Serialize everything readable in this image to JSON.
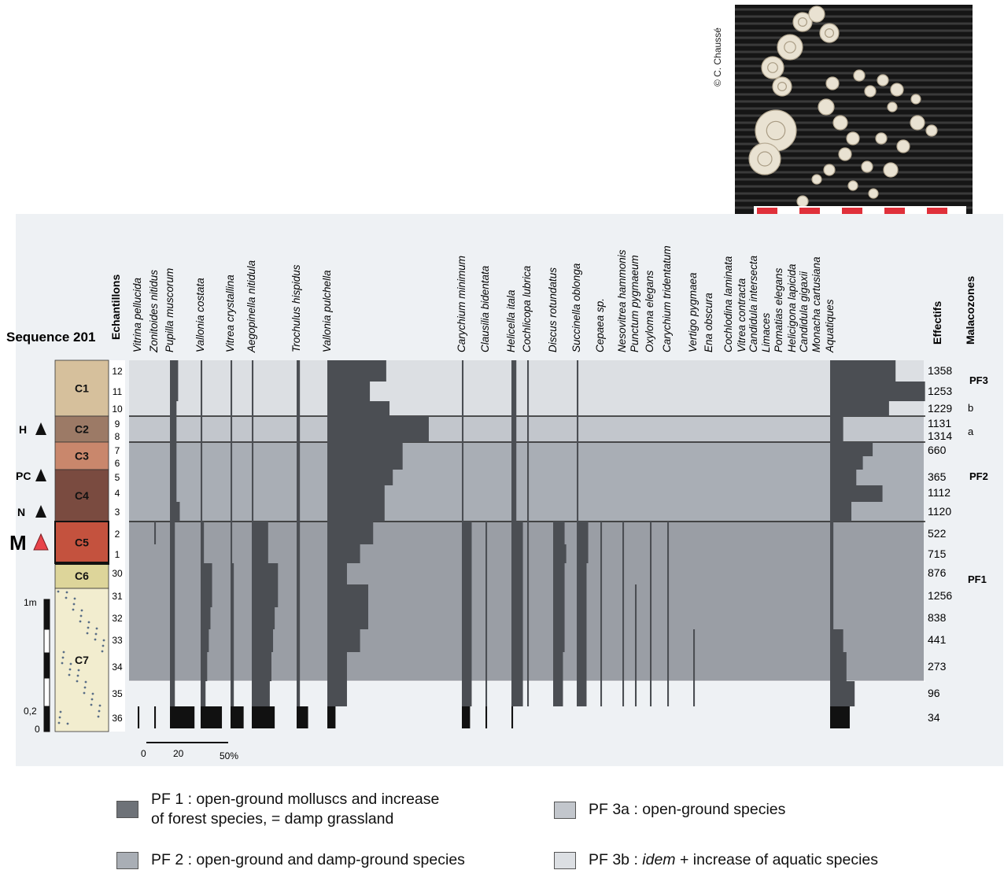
{
  "photo_credit": "© C. Chaussé",
  "sequence_title": "Sequence 201",
  "header_echantillons": "Echantillons",
  "header_effectifs": "Effectifs",
  "header_malacozones": "Malacozones",
  "scale": {
    "one_meter": "1m",
    "point_two": "0,2",
    "zero": "0"
  },
  "percent_scale": {
    "labels": [
      "0",
      "20",
      "50%"
    ]
  },
  "markers": [
    {
      "label": "H",
      "color": "#111111",
      "sample": "9"
    },
    {
      "label": "PC",
      "color": "#111111",
      "sample": "5"
    },
    {
      "label": "N",
      "color": "#111111",
      "sample": "3"
    },
    {
      "label": "M",
      "color": "#e8434a",
      "sample": "2"
    }
  ],
  "layers": [
    {
      "name": "C1",
      "color": "#d6c09c"
    },
    {
      "name": "C2",
      "color": "#9c7a66"
    },
    {
      "name": "C3",
      "color": "#c9876c"
    },
    {
      "name": "C4",
      "color": "#7a4b40"
    },
    {
      "name": "C5",
      "color": "#c4523e"
    },
    {
      "name": "C6",
      "color": "#ddd59a"
    },
    {
      "name": "C7",
      "color": "#f2edcf"
    }
  ],
  "zones": {
    "PF3": "PF3",
    "b": "b",
    "a": "a",
    "PF2": "PF2",
    "PF1": "PF1"
  },
  "zone_colors": {
    "PF1": "#9a9ea5",
    "PF2": "#a9aeb5",
    "PF3a": "#c2c6cc",
    "PF3b": "#dcdfe3",
    "bar": "#4b4e53"
  },
  "legend": [
    {
      "line1": "PF 1 : open-ground molluscs and increase",
      "line2": "of forest species, = damp grassland",
      "color": "#6e7278"
    },
    {
      "line1": "PF 3a : open-ground species",
      "line2": "",
      "color": "#c2c6cc"
    },
    {
      "line1": "PF 2 : open-ground and damp-ground species",
      "line2": "",
      "color": "#a9aeb5"
    },
    {
      "pre": "PF 3b : ",
      "em": "idem",
      "post": " + increase of aquatic species",
      "color": "#dcdfe3"
    }
  ],
  "chart_data": {
    "type": "area",
    "title": "Sequence 201",
    "x_unit": "%",
    "samples": [
      "12",
      "11",
      "10",
      "9",
      "8",
      "7",
      "6",
      "5",
      "4",
      "3",
      "2",
      "1",
      "30",
      "31",
      "32",
      "33",
      "34",
      "35",
      "36"
    ],
    "effectifs": [
      "1358",
      "1253",
      "1229",
      "1131",
      "1314",
      "660",
      "",
      "365",
      "1112",
      "1120",
      "522",
      "715",
      "876",
      "1256",
      "838",
      "441",
      "273",
      "96",
      "34"
    ],
    "series": [
      {
        "name": "Vitrina pellucida",
        "values": [
          0,
          0,
          0,
          0,
          0,
          0,
          0,
          0,
          0,
          0,
          0,
          0,
          0,
          0,
          0,
          0,
          0,
          0,
          1
        ]
      },
      {
        "name": "Zonitoides nitidus",
        "values": [
          0,
          0,
          0,
          0,
          0,
          0,
          0,
          0,
          0,
          0,
          1,
          0,
          0,
          0,
          0,
          0,
          0,
          0,
          1
        ]
      },
      {
        "name": "Pupilla muscorum",
        "values": [
          5,
          5,
          4,
          4,
          4,
          4,
          4,
          4,
          4,
          6,
          3,
          3,
          3,
          3,
          3,
          3,
          3,
          3,
          15
        ]
      },
      {
        "name": "Vallonia costata",
        "values": [
          1,
          1,
          1,
          1,
          1,
          1,
          1,
          1,
          1,
          1,
          2,
          2,
          7,
          7,
          6,
          5,
          4,
          3,
          13
        ]
      },
      {
        "name": "Vitrea crystallina",
        "values": [
          1,
          1,
          1,
          1,
          1,
          1,
          1,
          1,
          1,
          1,
          1,
          1,
          2,
          2,
          2,
          2,
          2,
          2,
          8
        ]
      },
      {
        "name": "Aegopinella nitidula",
        "values": [
          1,
          1,
          1,
          1,
          1,
          1,
          1,
          1,
          1,
          1,
          10,
          10,
          16,
          16,
          14,
          13,
          12,
          11,
          14
        ]
      },
      {
        "name": "Trochulus hispidus",
        "values": [
          2,
          2,
          2,
          2,
          2,
          2,
          2,
          2,
          2,
          2,
          2,
          2,
          2,
          2,
          2,
          2,
          2,
          2,
          7
        ]
      },
      {
        "name": "Vallonia pulchella",
        "values": [
          36,
          26,
          38,
          62,
          62,
          46,
          46,
          40,
          35,
          35,
          28,
          20,
          12,
          25,
          25,
          20,
          12,
          12,
          5
        ]
      },
      {
        "name": "Carychium minimum",
        "values": [
          1,
          1,
          1,
          1,
          1,
          1,
          1,
          1,
          1,
          1,
          6,
          6,
          6,
          6,
          6,
          6,
          6,
          6,
          5
        ]
      },
      {
        "name": "Clausilia bidentata",
        "values": [
          0,
          0,
          0,
          0,
          0,
          0,
          0,
          0,
          0,
          0,
          1,
          1,
          1,
          1,
          1,
          1,
          1,
          1,
          1
        ]
      },
      {
        "name": "Helicella itala",
        "values": [
          3,
          3,
          3,
          3,
          3,
          3,
          3,
          3,
          3,
          3,
          7,
          7,
          7,
          7,
          7,
          7,
          7,
          7,
          1
        ]
      },
      {
        "name": "Cochlicopa lubrica",
        "values": [
          1,
          1,
          1,
          1,
          1,
          1,
          1,
          1,
          1,
          1,
          1,
          1,
          1,
          1,
          1,
          1,
          1,
          1,
          0
        ]
      },
      {
        "name": "Discus rotundatus",
        "values": [
          0,
          0,
          0,
          0,
          0,
          0,
          0,
          0,
          0,
          0,
          7,
          8,
          7,
          7,
          7,
          7,
          6,
          6,
          0
        ]
      },
      {
        "name": "Succinella oblonga",
        "values": [
          1,
          1,
          1,
          1,
          1,
          1,
          1,
          1,
          1,
          1,
          7,
          7,
          6,
          6,
          6,
          6,
          6,
          6,
          0
        ]
      },
      {
        "name": "Cepaea sp.",
        "values": [
          0,
          0,
          0,
          0,
          0,
          0,
          0,
          0,
          0,
          0,
          1,
          1,
          1,
          1,
          1,
          1,
          1,
          1,
          0
        ]
      },
      {
        "name": "Nesovitrea hammonis",
        "values": [
          0,
          0,
          0,
          0,
          0,
          0,
          0,
          0,
          0,
          0,
          1,
          1,
          1,
          1,
          1,
          1,
          1,
          1,
          0
        ]
      },
      {
        "name": "Punctum pygmaeum",
        "values": [
          0,
          0,
          0,
          0,
          0,
          0,
          0,
          0,
          0,
          0,
          0,
          0,
          0,
          1,
          1,
          1,
          1,
          1,
          0
        ]
      },
      {
        "name": "Oxyloma elegans",
        "values": [
          0,
          0,
          0,
          0,
          0,
          0,
          0,
          0,
          0,
          0,
          1,
          1,
          1,
          1,
          1,
          1,
          1,
          1,
          0
        ]
      },
      {
        "name": "Carychium tridentatum",
        "values": [
          0,
          0,
          0,
          0,
          0,
          0,
          0,
          0,
          0,
          0,
          1,
          1,
          1,
          1,
          1,
          1,
          1,
          1,
          0
        ]
      },
      {
        "name": "Vertigo pygmaea",
        "values": [
          0,
          0,
          0,
          0,
          0,
          0,
          0,
          0,
          0,
          0,
          0,
          0,
          0,
          0,
          0,
          1,
          1,
          1,
          0
        ]
      },
      {
        "name": "Ena obscura",
        "values": [
          0,
          0,
          0,
          0,
          0,
          0,
          0,
          0,
          0,
          0,
          0,
          0,
          0,
          0,
          0,
          0,
          0,
          0,
          0
        ]
      },
      {
        "name": "Cochlodina laminata",
        "values": [
          0,
          0,
          0,
          0,
          0,
          0,
          0,
          0,
          0,
          0,
          0,
          0,
          0,
          0,
          0,
          0,
          0,
          0,
          0
        ]
      },
      {
        "name": "Vitrea contracta",
        "values": [
          0,
          0,
          0,
          0,
          0,
          0,
          0,
          0,
          0,
          0,
          0,
          0,
          0,
          0,
          0,
          0,
          0,
          0,
          0
        ]
      },
      {
        "name": "Candidula intersecta",
        "values": [
          0,
          0,
          0,
          0,
          0,
          0,
          0,
          0,
          0,
          0,
          0,
          0,
          0,
          0,
          0,
          0,
          0,
          0,
          0
        ]
      },
      {
        "name": "Limaces",
        "values": [
          0,
          0,
          0,
          0,
          0,
          0,
          0,
          0,
          0,
          0,
          0,
          0,
          0,
          0,
          0,
          0,
          0,
          0,
          0
        ]
      },
      {
        "name": "Pomatias elegans",
        "values": [
          0,
          0,
          0,
          0,
          0,
          0,
          0,
          0,
          0,
          0,
          0,
          0,
          0,
          0,
          0,
          0,
          0,
          0,
          0
        ]
      },
      {
        "name": "Helicigona lapicida",
        "values": [
          0,
          0,
          0,
          0,
          0,
          0,
          0,
          0,
          0,
          0,
          0,
          0,
          0,
          0,
          0,
          0,
          0,
          0,
          0
        ]
      },
      {
        "name": "Candidula gigaxii",
        "values": [
          0,
          0,
          0,
          0,
          0,
          0,
          0,
          0,
          0,
          0,
          0,
          0,
          0,
          0,
          0,
          0,
          0,
          0,
          0
        ]
      },
      {
        "name": "Monacha cartusiana",
        "values": [
          0,
          0,
          0,
          0,
          0,
          0,
          0,
          0,
          0,
          0,
          0,
          0,
          0,
          0,
          0,
          0,
          0,
          0,
          0
        ]
      },
      {
        "name": "Aquatiques",
        "values": [
          40,
          58,
          36,
          8,
          8,
          26,
          20,
          16,
          32,
          13,
          2,
          2,
          2,
          2,
          2,
          8,
          10,
          15,
          12
        ]
      }
    ]
  }
}
